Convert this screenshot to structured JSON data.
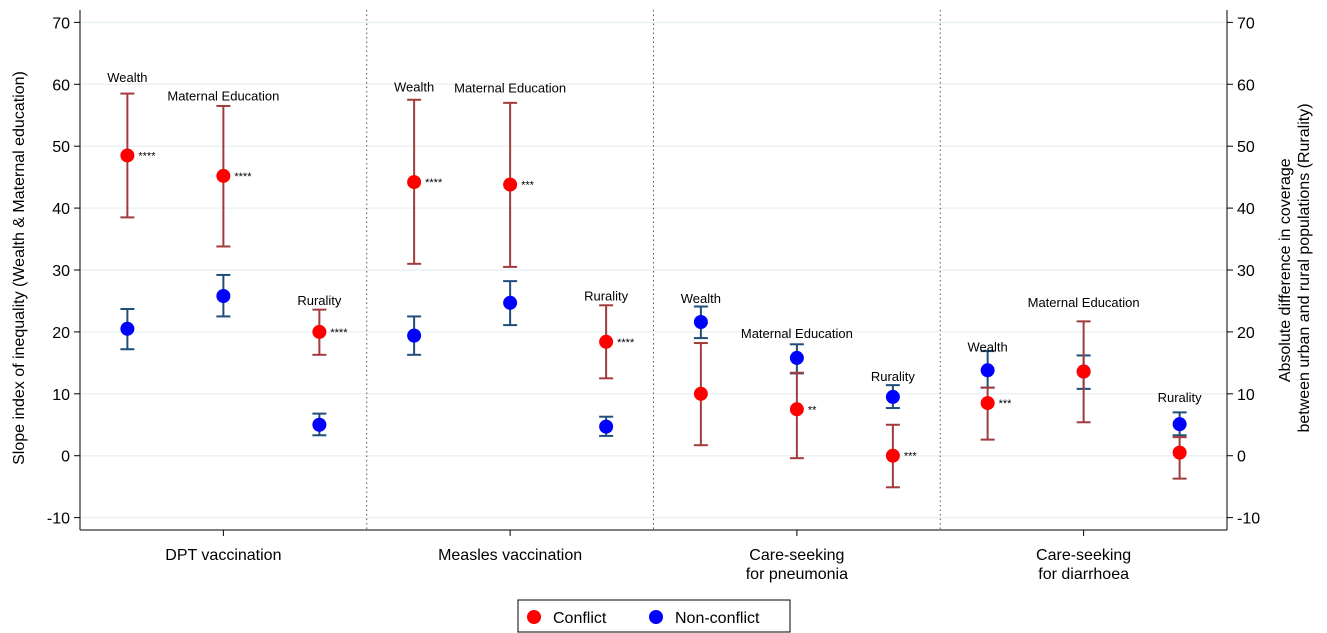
{
  "chart_data": {
    "type": "scatter",
    "title": "",
    "ylabel_left": "Slope index of inequality (Wealth & Maternal education)",
    "ylabel_right": [
      "Absolute difference in coverage",
      "between urban and rural populations (Rurality)"
    ],
    "ylim": [
      -12,
      72
    ],
    "yticks": [
      -10,
      0,
      10,
      20,
      30,
      40,
      50,
      60,
      70
    ],
    "grid": true,
    "legend_position": "bottom",
    "categories": [
      {
        "label": [
          "DPT vaccination"
        ]
      },
      {
        "label": [
          "Measles vaccination"
        ]
      },
      {
        "label": [
          "Care-seeking",
          "for pneumonia"
        ]
      },
      {
        "label": [
          "Care-seeking",
          "for diarrhoea"
        ]
      }
    ],
    "series": [
      {
        "name": "Conflict",
        "color": "#ff0000",
        "bar_color": "#a23b3b"
      },
      {
        "name": "Non-conflict",
        "color": "#0000ff",
        "bar_color": "#1f4e79"
      }
    ],
    "groups": [
      {
        "category": 0,
        "label": "Wealth",
        "label_y": 61,
        "conflict": {
          "value": 48.5,
          "low": 38.5,
          "high": 58.5,
          "sig": "****"
        },
        "nonconflict": {
          "value": 20.5,
          "low": 17.2,
          "high": 23.7,
          "sig": ""
        }
      },
      {
        "category": 0,
        "label": "Maternal Education",
        "label_y": 58,
        "conflict": {
          "value": 45.2,
          "low": 33.8,
          "high": 56.5,
          "sig": "****"
        },
        "nonconflict": {
          "value": 25.8,
          "low": 22.5,
          "high": 29.2,
          "sig": ""
        }
      },
      {
        "category": 0,
        "label": "Rurality",
        "label_y": 25,
        "conflict": {
          "value": 20.0,
          "low": 16.3,
          "high": 23.6,
          "sig": "****"
        },
        "nonconflict": {
          "value": 5.0,
          "low": 3.3,
          "high": 6.8,
          "sig": ""
        }
      },
      {
        "category": 1,
        "label": "Wealth",
        "label_y": 59.5,
        "conflict": {
          "value": 44.2,
          "low": 31.0,
          "high": 57.5,
          "sig": "****"
        },
        "nonconflict": {
          "value": 19.4,
          "low": 16.3,
          "high": 22.5,
          "sig": ""
        }
      },
      {
        "category": 1,
        "label": "Maternal Education",
        "label_y": 59.3,
        "conflict": {
          "value": 43.8,
          "low": 30.5,
          "high": 57.0,
          "sig": "***"
        },
        "nonconflict": {
          "value": 24.7,
          "low": 21.1,
          "high": 28.2,
          "sig": ""
        }
      },
      {
        "category": 1,
        "label": "Rurality",
        "label_y": 25.7,
        "conflict": {
          "value": 18.4,
          "low": 12.5,
          "high": 24.3,
          "sig": "****"
        },
        "nonconflict": {
          "value": 4.7,
          "low": 3.2,
          "high": 6.3,
          "sig": ""
        }
      },
      {
        "category": 2,
        "label": "Wealth",
        "label_y": 25.3,
        "conflict": {
          "value": 10.0,
          "low": 1.7,
          "high": 18.2,
          "sig": ""
        },
        "nonconflict": {
          "value": 21.6,
          "low": 19.0,
          "high": 24.1,
          "sig": ""
        }
      },
      {
        "category": 2,
        "label": "Maternal Education",
        "label_y": 19.7,
        "conflict": {
          "value": 7.5,
          "low": -0.4,
          "high": 13.4,
          "sig": "**"
        },
        "nonconflict": {
          "value": 15.8,
          "low": 13.3,
          "high": 18.0,
          "sig": ""
        }
      },
      {
        "category": 2,
        "label": "Rurality",
        "label_y": 12.7,
        "conflict": {
          "value": 0.0,
          "low": -5.1,
          "high": 5.0,
          "sig": "***"
        },
        "nonconflict": {
          "value": 9.5,
          "low": 7.7,
          "high": 11.4,
          "sig": ""
        }
      },
      {
        "category": 3,
        "label": "Wealth",
        "label_y": 17.5,
        "conflict": {
          "value": 8.5,
          "low": 2.6,
          "high": 11.0,
          "sig": "***"
        },
        "nonconflict": {
          "value": 13.8,
          "low": 11.0,
          "high": 16.9,
          "sig": ""
        }
      },
      {
        "category": 3,
        "label": "Maternal Education",
        "label_y": 24.7,
        "conflict": {
          "value": 13.6,
          "low": 5.4,
          "high": 21.7,
          "sig": ""
        },
        "nonconflict": {
          "value": 13.6,
          "low": 10.8,
          "high": 16.2,
          "sig": ""
        }
      },
      {
        "category": 3,
        "label": "Rurality",
        "label_y": 9.3,
        "conflict": {
          "value": 0.5,
          "low": -3.7,
          "high": 3.0,
          "sig": ""
        },
        "nonconflict": {
          "value": 5.1,
          "low": 3.3,
          "high": 7.0,
          "sig": ""
        }
      }
    ]
  }
}
